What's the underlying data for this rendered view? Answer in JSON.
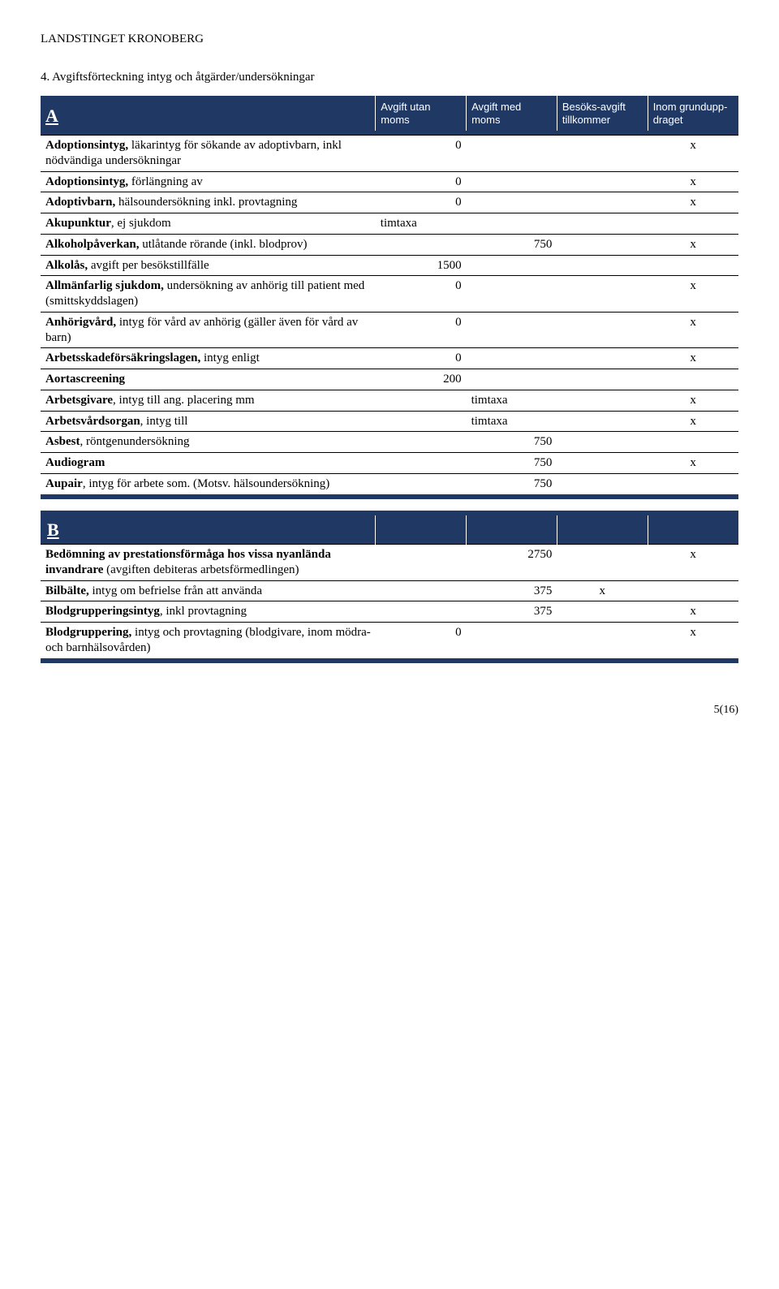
{
  "header": "LANDSTINGET KRONOBERG",
  "section_title": "4. Avgiftsförteckning intyg och åtgärder/undersökningar",
  "columns": {
    "c1": "Avgift utan moms",
    "c2": "Avgift med moms",
    "c3": "Besöks-avgift tillkommer",
    "c4": "Inom grundupp-draget"
  },
  "letterA": "A",
  "letterB": "B",
  "rowsA": [
    {
      "desc_html": "<b>Adoptionsintyg,</b> läkarintyg för sökande av adoptivbarn, inkl nödvändiga undersökningar",
      "c1": "0",
      "c2": "",
      "c3": "",
      "c4": "x"
    },
    {
      "desc_html": "<b>Adoptionsintyg,</b> förlängning av",
      "c1": "0",
      "c2": "",
      "c3": "",
      "c4": "x"
    },
    {
      "desc_html": "<b>Adoptivbarn,</b> hälsoundersökning inkl. provtagning",
      "c1": "0",
      "c2": "",
      "c3": "",
      "c4": "x"
    },
    {
      "desc_html": "<b>Akupunktur</b>, ej sjukdom",
      "c1": "timtaxa",
      "c2": "",
      "c3": "",
      "c4": ""
    },
    {
      "desc_html": "<b>Alkoholpåverkan,</b> utlåtande rörande (inkl. blodprov)",
      "c1": "",
      "c2": "750",
      "c3": "",
      "c4": "x"
    },
    {
      "desc_html": "<b>Alkolås,</b> avgift per besökstillfälle",
      "c1": "1500",
      "c2": "",
      "c3": "",
      "c4": ""
    },
    {
      "desc_html": "<b>Allmänfarlig sjukdom,</b> undersökning av anhörig till patient med (smittskyddslagen)",
      "c1": "0",
      "c2": "",
      "c3": "",
      "c4": "x"
    },
    {
      "desc_html": "<b>Anhörigvård,</b> intyg för vård av anhörig (gäller även för vård av barn)",
      "c1": "0",
      "c2": "",
      "c3": "",
      "c4": "x"
    },
    {
      "desc_html": "<b>Arbetsskadeförsäkringslagen,</b> intyg enligt",
      "c1": "0",
      "c2": "",
      "c3": "",
      "c4": "x"
    },
    {
      "desc_html": "<b>Aortascreening</b>",
      "c1": "200",
      "c2": "",
      "c3": "",
      "c4": ""
    },
    {
      "desc_html": "<b>Arbetsgivare</b>, intyg till ang. placering mm",
      "c1": "",
      "c2": "timtaxa",
      "c3": "",
      "c4": "x"
    },
    {
      "desc_html": "<b>Arbetsvårdsorgan</b>, intyg till",
      "c1": "",
      "c2": "timtaxa",
      "c3": "",
      "c4": "x"
    },
    {
      "desc_html": "<b>Asbest</b>, röntgenundersökning",
      "c1": "",
      "c2": "750",
      "c3": "",
      "c4": ""
    },
    {
      "desc_html": "<b>Audiogram</b>",
      "c1": "",
      "c2": "750",
      "c3": "",
      "c4": "x"
    },
    {
      "desc_html": "<b>Aupair</b>, intyg för arbete som. (Motsv. hälsoundersökning)",
      "c1": "",
      "c2": "750",
      "c3": "",
      "c4": ""
    }
  ],
  "rowsB": [
    {
      "desc_html": "<b>Bedömning av prestationsförmåga hos vissa nyanlända invandrare</b> (avgiften debiteras arbetsförmedlingen)",
      "c1": "",
      "c2": "2750",
      "c3": "",
      "c4": "x"
    },
    {
      "desc_html": "<b>Bilbälte,</b> intyg om befrielse från att använda",
      "c1": "",
      "c2": "375",
      "c3": "x",
      "c4": ""
    },
    {
      "desc_html": "<b>Blodgrupperingsintyg</b>, inkl provtagning",
      "c1": "",
      "c2": "375",
      "c3": "",
      "c4": "x"
    },
    {
      "desc_html": "<b>Blodgruppering,</b> intyg och provtagning (blodgivare, inom mödra- och barnhälsovården)",
      "c1": "0",
      "c2": "",
      "c3": "",
      "c4": "x"
    }
  ],
  "footer": "5(16)"
}
